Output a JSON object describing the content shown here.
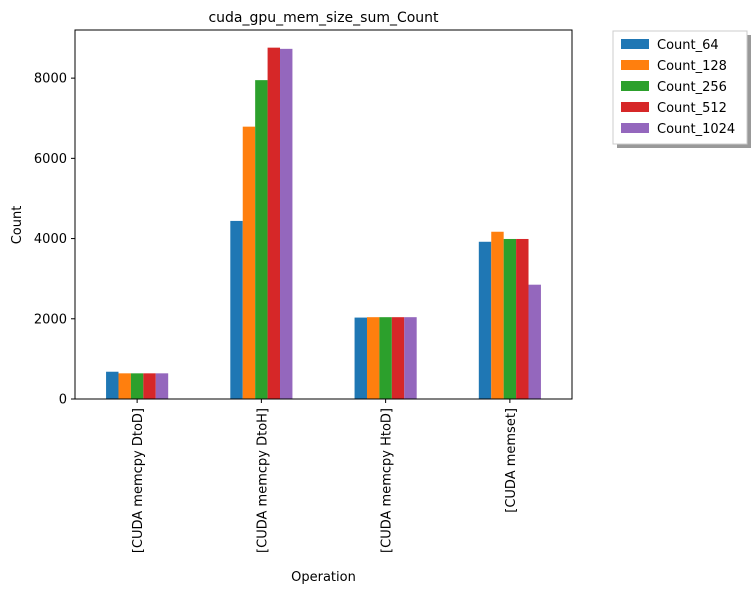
{
  "chart_data": {
    "type": "bar",
    "title": "cuda_gpu_mem_size_sum_Count",
    "xlabel": "Operation",
    "ylabel": "Count",
    "categories": [
      "[CUDA memcpy DtoD]",
      "[CUDA memcpy DtoH]",
      "[CUDA memcpy HtoD]",
      "[CUDA memset]"
    ],
    "ylim": [
      0,
      9200
    ],
    "yticks": [
      0,
      2000,
      4000,
      6000,
      8000
    ],
    "grid": false,
    "legend_position": "outside top-right",
    "series": [
      {
        "name": "Count_64",
        "color": "#1f77b4",
        "values": [
          680,
          4440,
          2030,
          3920
        ]
      },
      {
        "name": "Count_128",
        "color": "#ff7f0e",
        "values": [
          640,
          6790,
          2040,
          4170
        ]
      },
      {
        "name": "Count_256",
        "color": "#2ca02c",
        "values": [
          640,
          7950,
          2040,
          3990
        ]
      },
      {
        "name": "Count_512",
        "color": "#d62728",
        "values": [
          640,
          8760,
          2040,
          3990
        ]
      },
      {
        "name": "Count_1024",
        "color": "#9467bd",
        "values": [
          640,
          8730,
          2040,
          2850
        ]
      }
    ]
  }
}
